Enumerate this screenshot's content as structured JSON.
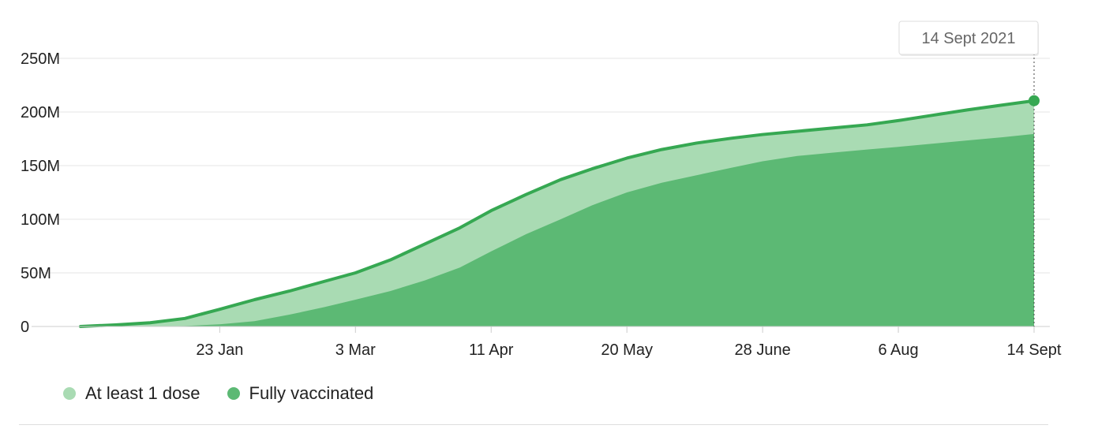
{
  "colors": {
    "at_least_one_dose": "#a9dbb3",
    "fully_vaccinated": "#5cb974",
    "line": "#36a852",
    "grid": "#e6e6e6",
    "axis": "#cccccc"
  },
  "tooltip": {
    "label": "14 Sept 2021"
  },
  "legend": {
    "items": [
      {
        "label": "At least 1 dose",
        "color": "#a9dbb3"
      },
      {
        "label": "Fully vaccinated",
        "color": "#5cb974"
      }
    ]
  },
  "chart_data": {
    "type": "area",
    "x_axis": {
      "start": "2020-12-14",
      "end": "2021-09-14",
      "tick_labels": [
        "23 Jan",
        "3 Mar",
        "11 Apr",
        "20 May",
        "28 June",
        "6 Aug",
        "14 Sept"
      ],
      "tick_dates": [
        "2021-01-23",
        "2021-03-03",
        "2021-04-11",
        "2021-05-20",
        "2021-06-28",
        "2021-08-06",
        "2021-09-14"
      ]
    },
    "y_axis": {
      "min": 0,
      "max": 250000000,
      "tick_values": [
        0,
        50000000,
        100000000,
        150000000,
        200000000,
        250000000
      ],
      "tick_labels": [
        "0",
        "50M",
        "100M",
        "150M",
        "200M",
        "250M"
      ]
    },
    "grid": true,
    "series": [
      {
        "name": "At least 1 dose",
        "points": [
          [
            "2020-12-14",
            0
          ],
          [
            "2020-12-24",
            1500000
          ],
          [
            "2021-01-03",
            3500000
          ],
          [
            "2021-01-13",
            7500000
          ],
          [
            "2021-01-23",
            16000000
          ],
          [
            "2021-02-02",
            25000000
          ],
          [
            "2021-02-12",
            33000000
          ],
          [
            "2021-02-22",
            42000000
          ],
          [
            "2021-03-03",
            50000000
          ],
          [
            "2021-03-13",
            62000000
          ],
          [
            "2021-03-23",
            77000000
          ],
          [
            "2021-04-02",
            92000000
          ],
          [
            "2021-04-11",
            108000000
          ],
          [
            "2021-04-21",
            123000000
          ],
          [
            "2021-05-01",
            137000000
          ],
          [
            "2021-05-10",
            147000000
          ],
          [
            "2021-05-20",
            157000000
          ],
          [
            "2021-05-30",
            165000000
          ],
          [
            "2021-06-09",
            171000000
          ],
          [
            "2021-06-19",
            175500000
          ],
          [
            "2021-06-28",
            179000000
          ],
          [
            "2021-07-08",
            182000000
          ],
          [
            "2021-07-18",
            185000000
          ],
          [
            "2021-07-28",
            188000000
          ],
          [
            "2021-08-06",
            192000000
          ],
          [
            "2021-08-16",
            197000000
          ],
          [
            "2021-08-26",
            202000000
          ],
          [
            "2021-09-05",
            206500000
          ],
          [
            "2021-09-14",
            210500000
          ]
        ]
      },
      {
        "name": "Fully vaccinated",
        "points": [
          [
            "2020-12-14",
            0
          ],
          [
            "2020-12-24",
            0
          ],
          [
            "2021-01-03",
            0
          ],
          [
            "2021-01-13",
            500000
          ],
          [
            "2021-01-23",
            2000000
          ],
          [
            "2021-02-02",
            5000000
          ],
          [
            "2021-02-12",
            11000000
          ],
          [
            "2021-02-22",
            18000000
          ],
          [
            "2021-03-03",
            25000000
          ],
          [
            "2021-03-13",
            33000000
          ],
          [
            "2021-03-23",
            43000000
          ],
          [
            "2021-04-02",
            55000000
          ],
          [
            "2021-04-11",
            70000000
          ],
          [
            "2021-04-21",
            86000000
          ],
          [
            "2021-05-01",
            100000000
          ],
          [
            "2021-05-10",
            113000000
          ],
          [
            "2021-05-20",
            125000000
          ],
          [
            "2021-05-30",
            134000000
          ],
          [
            "2021-06-09",
            141000000
          ],
          [
            "2021-06-19",
            148000000
          ],
          [
            "2021-06-28",
            154000000
          ],
          [
            "2021-07-08",
            159000000
          ],
          [
            "2021-07-18",
            162000000
          ],
          [
            "2021-07-28",
            165000000
          ],
          [
            "2021-08-06",
            167500000
          ],
          [
            "2021-08-16",
            170500000
          ],
          [
            "2021-08-26",
            173500000
          ],
          [
            "2021-09-05",
            176500000
          ],
          [
            "2021-09-14",
            179500000
          ]
        ]
      }
    ],
    "highlight": {
      "date": "2021-09-14",
      "value": 210500000
    }
  }
}
